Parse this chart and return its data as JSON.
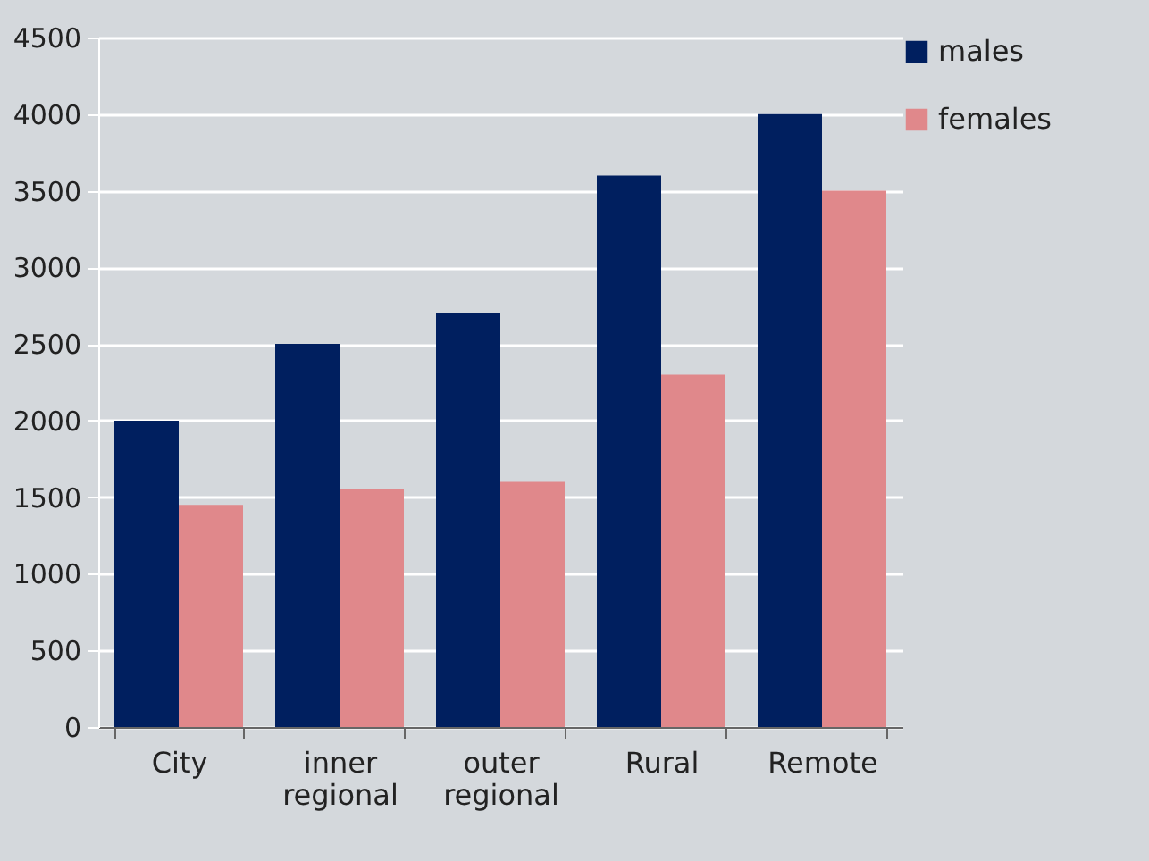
{
  "chart_data": {
    "type": "bar",
    "categories": [
      "City",
      "inner regional",
      "outer regional",
      "Rural",
      "Remote"
    ],
    "series": [
      {
        "name": "males",
        "color": "#001f5f",
        "values": [
          2000,
          2500,
          2700,
          3600,
          4000
        ]
      },
      {
        "name": "females",
        "color": "#e0888b",
        "values": [
          1450,
          1550,
          1600,
          2300,
          3500
        ]
      }
    ],
    "ylim": [
      0,
      4500
    ],
    "yticks": [
      0,
      500,
      1000,
      1500,
      2000,
      2500,
      3000,
      3500,
      4000,
      4500
    ],
    "grid": "y",
    "legend": "right"
  }
}
